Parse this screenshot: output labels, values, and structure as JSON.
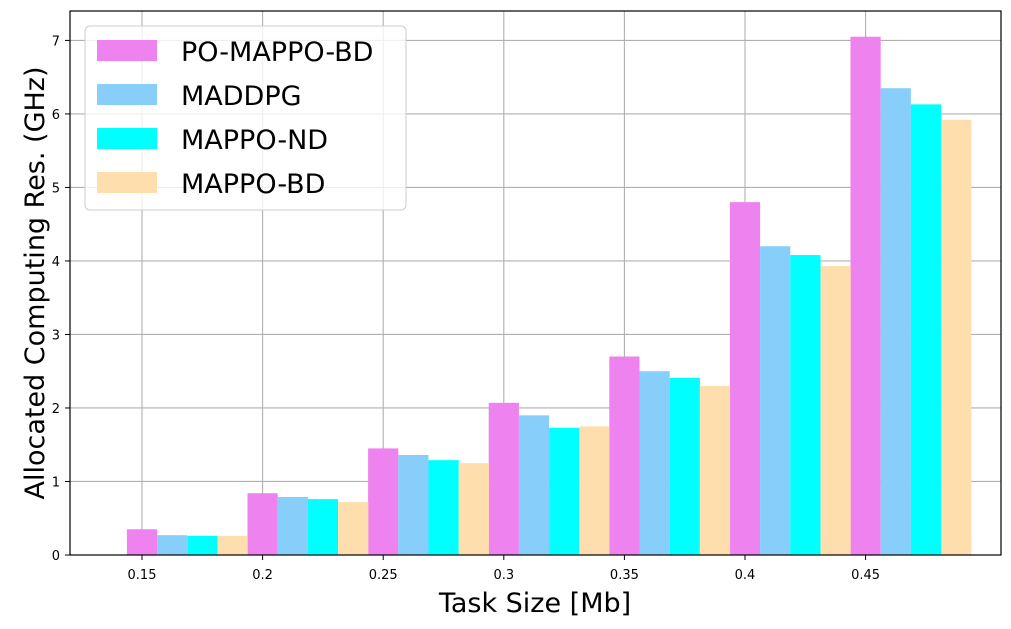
{
  "chart_data": {
    "type": "bar",
    "xlabel": "Task Size [Mb]",
    "ylabel": "Allocated Computing Res. (GHz)",
    "categories": [
      "0.15",
      "0.2",
      "0.25",
      "0.3",
      "0.35",
      "0.4",
      "0.45"
    ],
    "ylim": [
      0,
      7.4
    ],
    "yticks": [
      "0",
      "1",
      "2",
      "3",
      "4",
      "5",
      "6",
      "7"
    ],
    "grid": true,
    "legend_position": "top-left",
    "series": [
      {
        "name": "PO-MAPPO-BD",
        "color": "#EE82EE",
        "values": [
          0.35,
          0.84,
          1.45,
          2.07,
          2.7,
          4.8,
          7.05
        ]
      },
      {
        "name": "MADDPG",
        "color": "#87CEFA",
        "values": [
          0.27,
          0.79,
          1.36,
          1.9,
          2.5,
          4.2,
          6.35
        ]
      },
      {
        "name": "MAPPO-ND",
        "color": "#00FFFF",
        "values": [
          0.26,
          0.76,
          1.29,
          1.73,
          2.41,
          4.08,
          6.13
        ]
      },
      {
        "name": "MAPPO-BD",
        "color": "#FFDEAD",
        "values": [
          0.26,
          0.72,
          1.25,
          1.75,
          2.3,
          3.93,
          5.92
        ]
      }
    ]
  }
}
